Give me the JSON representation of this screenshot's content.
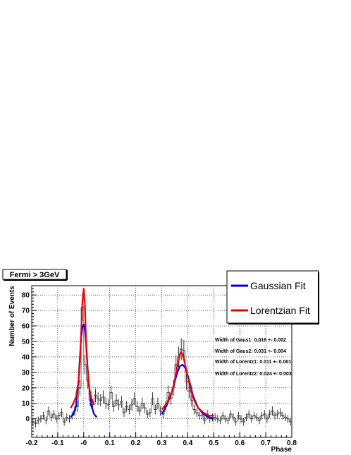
{
  "chart_data": {
    "type": "line",
    "title": "Fermi > 3GeV",
    "xlabel": "Phase",
    "ylabel": "Number of Events",
    "xlim": [
      -0.2,
      0.8
    ],
    "ylim": [
      -12,
      86
    ],
    "grid": true,
    "x_ticks": [
      "-0.2",
      "-0.1",
      "-0",
      "0.1",
      "0.2",
      "0.3",
      "0.4",
      "0.5",
      "0.6",
      "0.7",
      "0.8"
    ],
    "x_tick_values": [
      -0.2,
      -0.1,
      0.0,
      0.1,
      0.2,
      0.3,
      0.4,
      0.5,
      0.6,
      0.7,
      0.8
    ],
    "y_ticks": [
      "0",
      "10",
      "20",
      "30",
      "40",
      "50",
      "60",
      "70",
      "80"
    ],
    "y_tick_values": [
      0,
      10,
      20,
      30,
      40,
      50,
      60,
      70,
      80
    ],
    "histogram": {
      "bin_width": 0.01,
      "x": [
        -0.195,
        -0.185,
        -0.175,
        -0.165,
        -0.155,
        -0.145,
        -0.135,
        -0.125,
        -0.115,
        -0.105,
        -0.095,
        -0.085,
        -0.075,
        -0.065,
        -0.055,
        -0.045,
        -0.035,
        -0.025,
        -0.015,
        -0.005,
        0.005,
        0.015,
        0.025,
        0.035,
        0.045,
        0.055,
        0.065,
        0.075,
        0.085,
        0.095,
        0.105,
        0.115,
        0.125,
        0.135,
        0.145,
        0.155,
        0.165,
        0.175,
        0.185,
        0.195,
        0.205,
        0.215,
        0.225,
        0.235,
        0.245,
        0.255,
        0.265,
        0.275,
        0.285,
        0.295,
        0.305,
        0.315,
        0.325,
        0.335,
        0.345,
        0.355,
        0.365,
        0.375,
        0.385,
        0.395,
        0.405,
        0.415,
        0.425,
        0.435,
        0.445,
        0.455,
        0.465,
        0.475,
        0.485,
        0.495,
        0.505,
        0.515,
        0.525,
        0.535,
        0.545,
        0.555,
        0.565,
        0.575,
        0.585,
        0.595,
        0.605,
        0.615,
        0.625,
        0.635,
        0.645,
        0.655,
        0.665,
        0.675,
        0.685,
        0.695,
        0.705,
        0.715,
        0.725,
        0.735,
        0.745,
        0.755,
        0.765,
        0.775,
        0.785,
        0.795
      ],
      "values": [
        -2,
        -3,
        -1,
        0,
        2,
        -1,
        5,
        1,
        3,
        0,
        2,
        4,
        -2,
        1,
        0,
        2,
        5,
        8,
        20,
        72,
        35,
        25,
        12,
        9,
        15,
        13,
        12,
        14,
        10,
        9,
        17,
        8,
        12,
        9,
        11,
        4,
        8,
        6,
        9,
        13,
        8,
        5,
        10,
        7,
        3,
        4,
        13,
        6,
        10,
        5,
        3,
        8,
        17,
        13,
        20,
        35,
        40,
        45,
        44,
        24,
        18,
        12,
        6,
        4,
        2,
        2,
        -1,
        3,
        0,
        1,
        1,
        0,
        -1,
        2,
        0,
        -1,
        3,
        1,
        -2,
        2,
        0,
        -2,
        1,
        3,
        0,
        2,
        1,
        -1,
        2,
        3,
        0,
        3,
        5,
        2,
        3,
        4,
        2,
        1,
        0,
        -2
      ]
    },
    "series": [
      {
        "name": "Gaussian Fit",
        "color": "#0000ee",
        "x": [
          -0.05,
          -0.04,
          -0.03,
          -0.02,
          -0.015,
          -0.01,
          -0.005,
          0.0,
          0.005,
          0.01,
          0.015,
          0.02,
          0.03,
          0.04,
          0.05
        ],
        "y": [
          1,
          3,
          8,
          25,
          39,
          52,
          59,
          61,
          57,
          47,
          33,
          22,
          8,
          3,
          1
        ]
      },
      {
        "name": "Gaussian Fit",
        "color": "#0000ee",
        "x": [
          0.3,
          0.32,
          0.34,
          0.35,
          0.36,
          0.37,
          0.38,
          0.39,
          0.4,
          0.41,
          0.42,
          0.43,
          0.44,
          0.46,
          0.48,
          0.5
        ],
        "y": [
          3,
          9,
          18,
          24,
          30,
          34,
          35,
          33,
          28,
          22,
          15,
          11,
          7,
          3,
          1,
          0
        ]
      },
      {
        "name": "Lorentzian Fit",
        "color": "#ee0000",
        "x": [
          -0.05,
          -0.04,
          -0.03,
          -0.02,
          -0.015,
          -0.01,
          -0.005,
          0.0,
          0.005,
          0.01,
          0.015,
          0.02,
          0.03,
          0.04
        ],
        "y": [
          7,
          10,
          14,
          24,
          36,
          55,
          76,
          84,
          72,
          45,
          32,
          21,
          13,
          9
        ]
      },
      {
        "name": "Lorentzian Fit",
        "color": "#ee0000",
        "x": [
          0.3,
          0.32,
          0.34,
          0.35,
          0.36,
          0.37,
          0.375,
          0.38,
          0.39,
          0.4,
          0.41,
          0.42,
          0.43,
          0.44,
          0.46,
          0.48,
          0.5
        ],
        "y": [
          6,
          10,
          18,
          25,
          34,
          42,
          43,
          42,
          35,
          27,
          20,
          14,
          10,
          7,
          4,
          2,
          2
        ]
      }
    ],
    "legend": {
      "position": "top-right",
      "entries": [
        "Gaussian Fit",
        "Lorentzian Fit"
      ]
    },
    "annotations": [
      "Width of Gaus1: 0.016 +- 0.002",
      "Width of Gaus2: 0.031 +- 0.004",
      "Width of Lorentz1: 0.011 +- 0.001",
      "Width of Lorentz2: 0.024 +- 0.003"
    ]
  }
}
